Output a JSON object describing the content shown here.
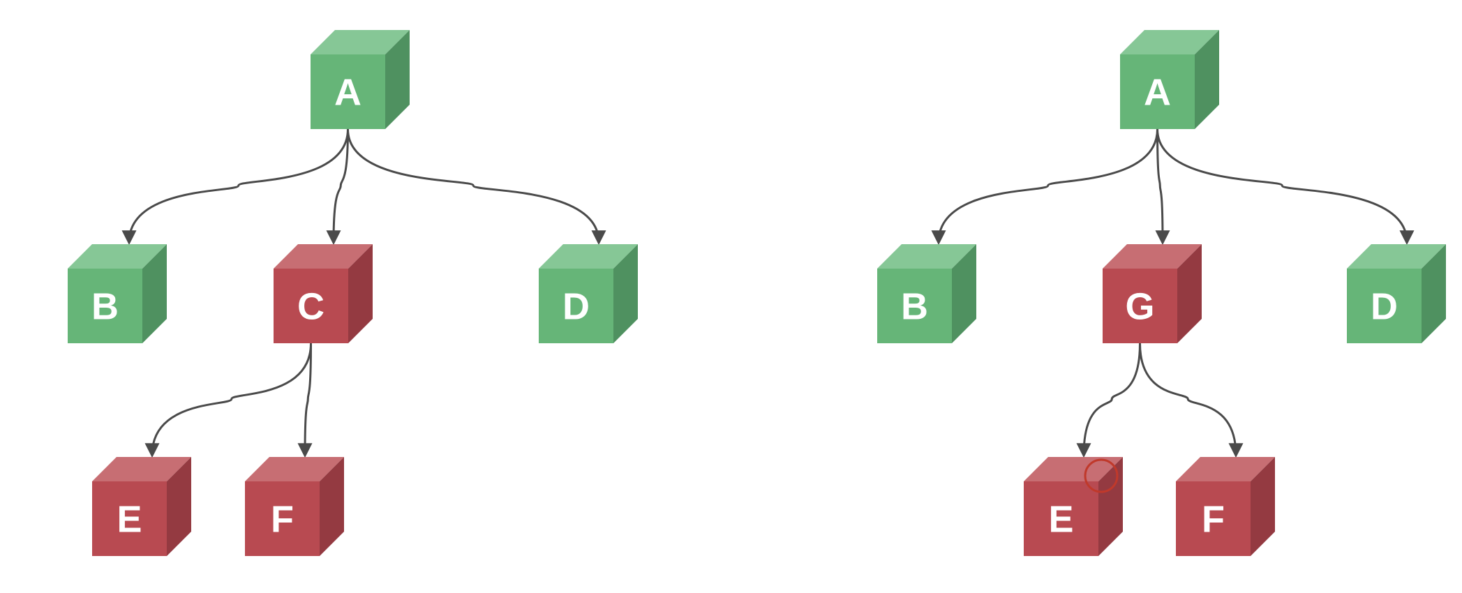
{
  "colors": {
    "green": {
      "front": "#66b578",
      "top": "#86c796",
      "side": "#4f9160"
    },
    "red": {
      "front": "#b84a51",
      "top": "#c76e73",
      "side": "#943a41"
    },
    "edge": "#4a4a4a",
    "highlight": "#c0392b"
  },
  "trees": [
    {
      "nodes": [
        {
          "id": "A",
          "label": "A",
          "color": "green"
        },
        {
          "id": "B",
          "label": "B",
          "color": "green"
        },
        {
          "id": "C",
          "label": "C",
          "color": "red"
        },
        {
          "id": "D",
          "label": "D",
          "color": "green"
        },
        {
          "id": "E",
          "label": "E",
          "color": "red"
        },
        {
          "id": "F",
          "label": "F",
          "color": "red"
        }
      ],
      "edges": [
        [
          "A",
          "B"
        ],
        [
          "A",
          "C"
        ],
        [
          "A",
          "D"
        ],
        [
          "C",
          "E"
        ],
        [
          "C",
          "F"
        ]
      ]
    },
    {
      "nodes": [
        {
          "id": "A",
          "label": "A",
          "color": "green"
        },
        {
          "id": "B",
          "label": "B",
          "color": "green"
        },
        {
          "id": "G",
          "label": "G",
          "color": "red"
        },
        {
          "id": "D",
          "label": "D",
          "color": "green"
        },
        {
          "id": "E",
          "label": "E",
          "color": "red",
          "marked": true
        },
        {
          "id": "F",
          "label": "F",
          "color": "red"
        }
      ],
      "edges": [
        [
          "A",
          "B"
        ],
        [
          "A",
          "G"
        ],
        [
          "A",
          "D"
        ],
        [
          "G",
          "E"
        ],
        [
          "G",
          "F"
        ]
      ]
    }
  ]
}
